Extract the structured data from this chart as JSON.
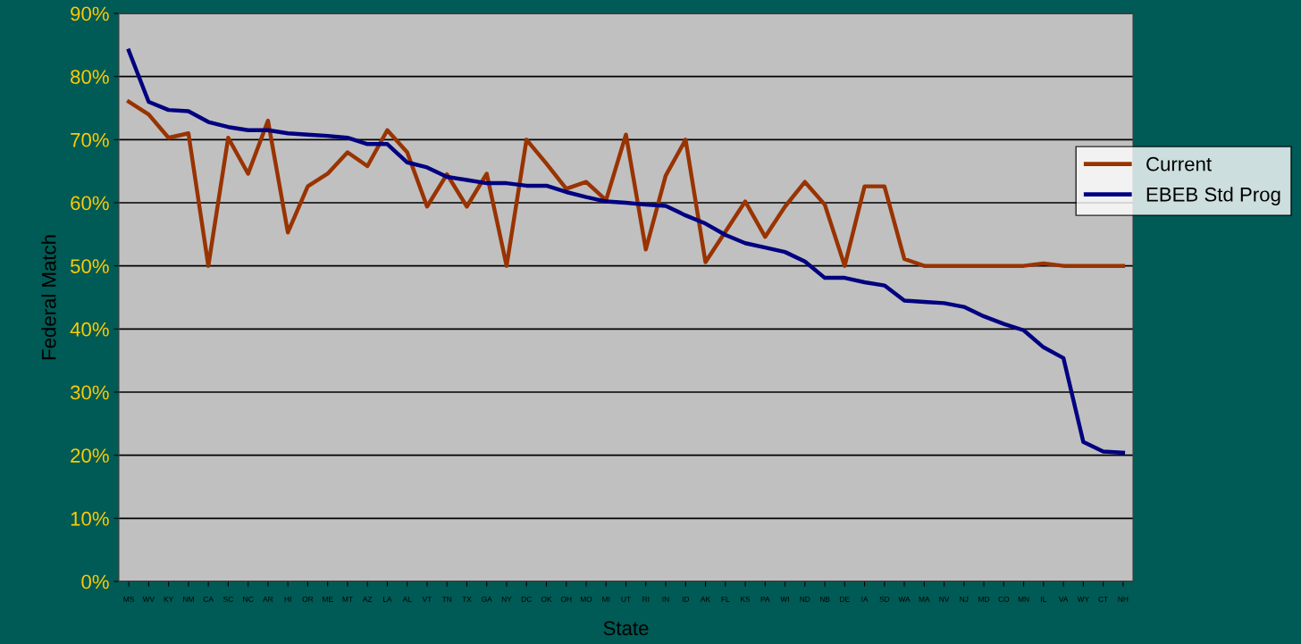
{
  "chart_data": {
    "type": "line",
    "xlabel": "State",
    "ylabel": "Federal Match",
    "categories": [
      "MS",
      "WV",
      "KY",
      "NM",
      "CA",
      "SC",
      "NC",
      "AR",
      "HI",
      "OR",
      "ME",
      "MT",
      "AZ",
      "LA",
      "AL",
      "VT",
      "TN",
      "TX",
      "GA",
      "NY",
      "DC",
      "OK",
      "OH",
      "MO",
      "MI",
      "UT",
      "RI",
      "IN",
      "ID",
      "AK",
      "FL",
      "KS",
      "PA",
      "WI",
      "ND",
      "NB",
      "DE",
      "IA",
      "SD",
      "WA",
      "MA",
      "NV",
      "NJ",
      "MD",
      "CO",
      "MN",
      "IL",
      "VA",
      "WY",
      "CT",
      "NH"
    ],
    "series": [
      {
        "name": "Current",
        "color": "#993300",
        "values": [
          76,
          74,
          70.3,
          71,
          50,
          70.3,
          64.6,
          73,
          55.3,
          62.6,
          64.6,
          68,
          65.8,
          71.5,
          68,
          59.4,
          64.5,
          59.4,
          64.6,
          50,
          70,
          66.2,
          62.2,
          63.3,
          60.4,
          70.8,
          52.6,
          64.3,
          70,
          50.6,
          55.4,
          60.2,
          54.6,
          59.4,
          63.3,
          59.7,
          50,
          62.6,
          62.6,
          51.1,
          50,
          50,
          50,
          50,
          50,
          50,
          50.4,
          50,
          50,
          50,
          50
        ]
      },
      {
        "name": "EBEB Std Prog",
        "color": "#000080",
        "values": [
          84.1,
          76,
          74.7,
          74.5,
          72.8,
          72,
          71.5,
          71.5,
          71,
          70.8,
          70.6,
          70.3,
          69.3,
          69.3,
          66.4,
          65.6,
          64.1,
          63.6,
          63.1,
          63.1,
          62.7,
          62.7,
          61.7,
          60.9,
          60.2,
          60,
          59.7,
          59.5,
          58,
          56.7,
          54.9,
          53.6,
          52.9,
          52.2,
          50.7,
          48.1,
          48.1,
          47.4,
          46.9,
          44.5,
          44.3,
          44.1,
          43.5,
          42,
          40.8,
          39.8,
          37.1,
          35.4,
          22.1,
          20.6,
          20.4
        ]
      }
    ],
    "ylim": [
      0,
      90
    ],
    "yticks": [
      {
        "value": 0,
        "label": "0%"
      },
      {
        "value": 10,
        "label": "10%"
      },
      {
        "value": 20,
        "label": "20%"
      },
      {
        "value": 30,
        "label": "30%"
      },
      {
        "value": 40,
        "label": "40%"
      },
      {
        "value": 50,
        "label": "50%"
      },
      {
        "value": 60,
        "label": "60%"
      },
      {
        "value": 70,
        "label": "70%"
      },
      {
        "value": 80,
        "label": "80%"
      },
      {
        "value": 90,
        "label": "90%"
      }
    ],
    "grid": "y",
    "legend": "right",
    "marker": "none",
    "line_style": "solid"
  }
}
